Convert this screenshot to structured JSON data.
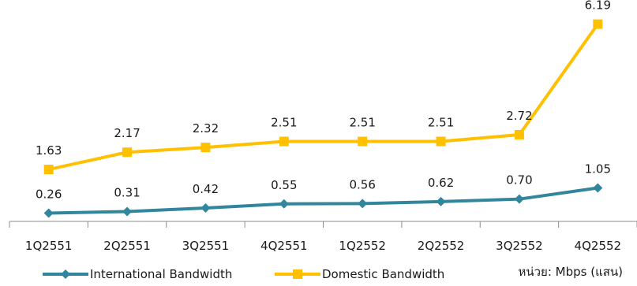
{
  "chart_data": {
    "type": "line",
    "categories": [
      "1Q2551",
      "2Q2551",
      "3Q2551",
      "4Q2551",
      "1Q2552",
      "2Q2552",
      "3Q2552",
      "4Q2552"
    ],
    "series": [
      {
        "name": "International Bandwidth",
        "values": [
          0.26,
          0.31,
          0.42,
          0.55,
          0.56,
          0.62,
          0.7,
          1.05
        ],
        "labels": [
          "0.26",
          "0.31",
          "0.42",
          "0.55",
          "0.56",
          "0.62",
          "0.70",
          "1.05"
        ],
        "color": "#31859c",
        "marker": "diamond"
      },
      {
        "name": "Domestic Bandwidth",
        "values": [
          1.63,
          2.17,
          2.32,
          2.51,
          2.51,
          2.51,
          2.72,
          6.19
        ],
        "labels": [
          "1.63",
          "2.17",
          "2.32",
          "2.51",
          "2.51",
          "2.51",
          "2.72",
          "6.19"
        ],
        "color": "#ffc000",
        "marker": "square"
      }
    ],
    "ylim": [
      0,
      6.7
    ],
    "grid": false,
    "legend_position": "bottom-left",
    "unit_note": "หน่วย: Mbps (แสน)"
  }
}
